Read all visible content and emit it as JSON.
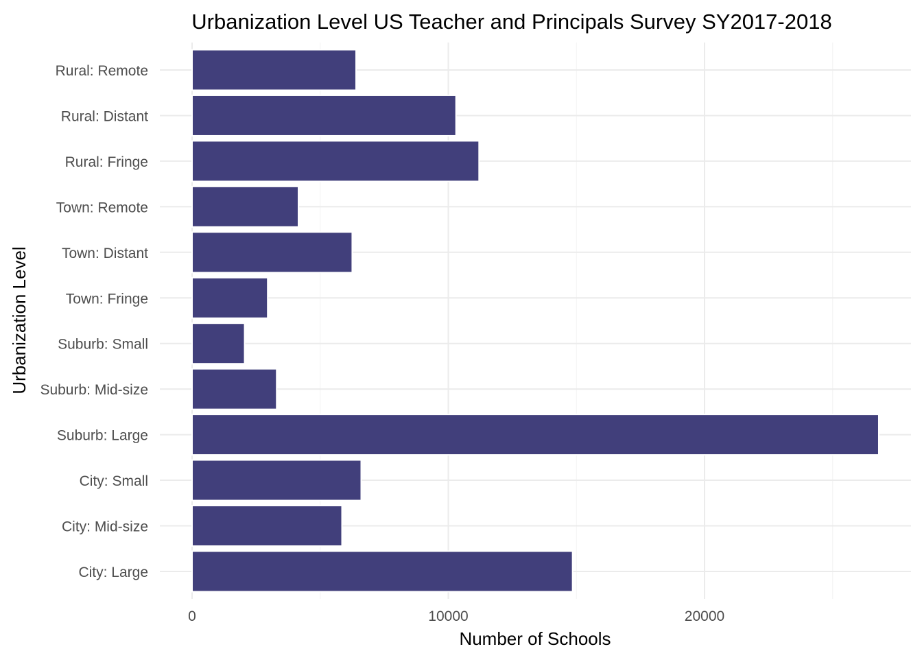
{
  "chart_data": {
    "type": "bar",
    "orientation": "horizontal",
    "title": "Urbanization Level US Teacher and Principals Survey SY2017-2018",
    "xlabel": "Number of Schools",
    "ylabel": "Urbanization Level",
    "categories": [
      "Rural: Remote",
      "Rural: Distant",
      "Rural: Fringe",
      "Town: Remote",
      "Town: Distant",
      "Town: Fringe",
      "Suburb: Small",
      "Suburb: Mid-size",
      "Suburb: Large",
      "City: Small",
      "City: Mid-size",
      "City: Large"
    ],
    "values": [
      6400,
      10300,
      11200,
      4150,
      6250,
      2950,
      2050,
      3300,
      26800,
      6600,
      5850,
      14850
    ],
    "xlim": [
      0,
      28000
    ],
    "x_ticks": [
      0,
      10000,
      20000
    ],
    "x_tick_labels": [
      "0",
      "10000",
      "20000"
    ],
    "grid": true,
    "legend": "none",
    "bar_color": "#413f7b"
  }
}
